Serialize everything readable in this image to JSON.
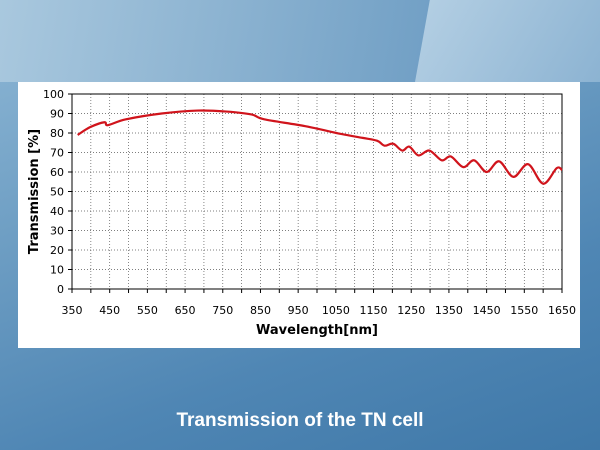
{
  "slide_title": "Transmission of the TN cell",
  "chart_data": {
    "type": "line",
    "title": "",
    "xlabel": "Wavelength[nm]",
    "ylabel": "Transmission [%]",
    "xlim": [
      350,
      1650
    ],
    "ylim": [
      0,
      100
    ],
    "xticks": [
      350,
      450,
      550,
      650,
      750,
      850,
      950,
      1050,
      1150,
      1250,
      1350,
      1450,
      1550,
      1650
    ],
    "yticks": [
      0,
      10,
      20,
      30,
      40,
      50,
      60,
      70,
      80,
      90,
      100
    ],
    "grid": true,
    "series": [
      {
        "name": "Transmission",
        "color": "#d0141c",
        "x": [
          365,
          398,
          436,
          445,
          493,
          588,
          683,
          760,
          826,
          860,
          969,
          1064,
          1121,
          1160,
          1179,
          1202,
          1226,
          1245,
          1269,
          1298,
          1331,
          1355,
          1388,
          1417,
          1450,
          1483,
          1521,
          1560,
          1600,
          1636,
          1650
        ],
        "y": [
          79,
          83,
          85.5,
          84,
          87,
          90,
          91.5,
          91,
          89.5,
          87,
          83.5,
          79.5,
          77.5,
          76,
          73.5,
          74.5,
          71,
          73,
          68.5,
          71,
          66,
          68,
          62.5,
          66,
          60,
          65.5,
          57.5,
          64,
          54,
          62,
          61
        ]
      }
    ]
  }
}
